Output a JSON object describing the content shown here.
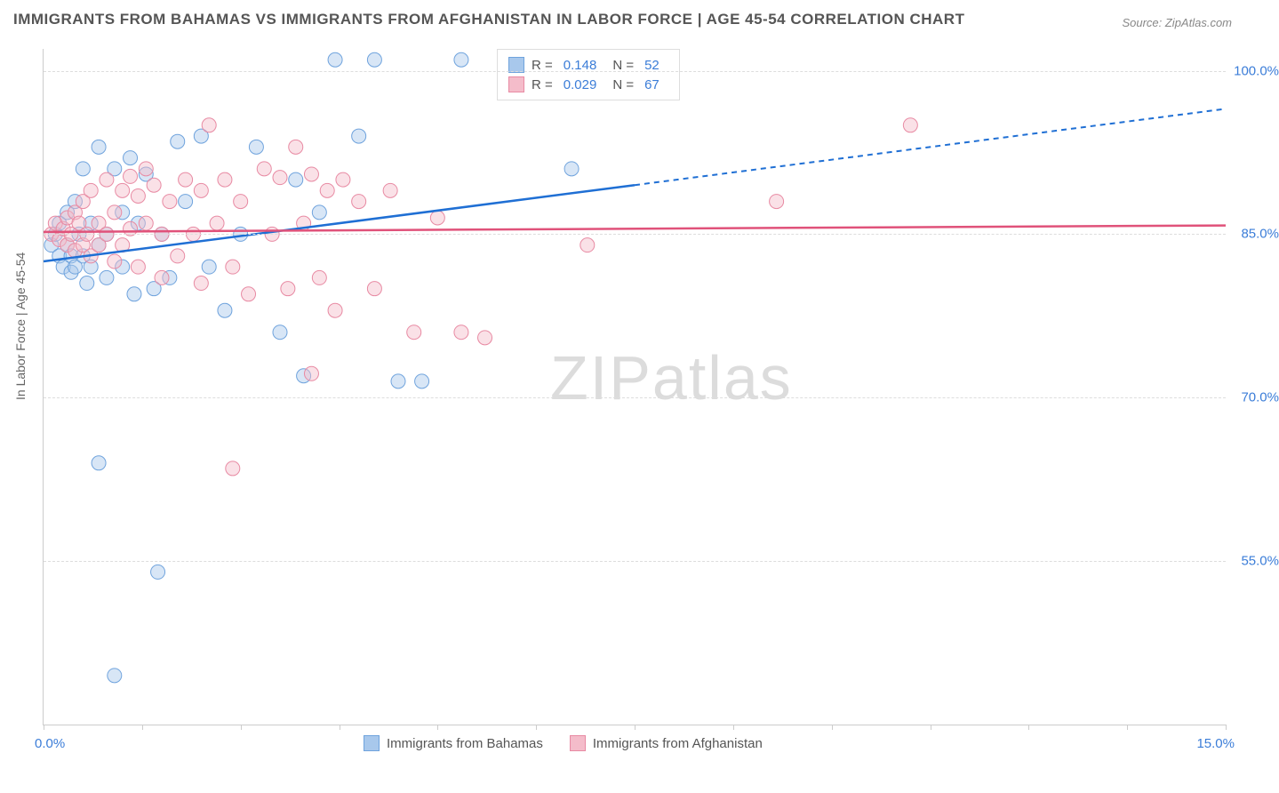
{
  "title": "IMMIGRANTS FROM BAHAMAS VS IMMIGRANTS FROM AFGHANISTAN IN LABOR FORCE | AGE 45-54 CORRELATION CHART",
  "source": "Source: ZipAtlas.com",
  "ylabel": "In Labor Force | Age 45-54",
  "watermark_a": "ZIP",
  "watermark_b": "atlas",
  "chart": {
    "type": "scatter",
    "xlim": [
      0,
      15
    ],
    "ylim": [
      40,
      102
    ],
    "yticks": [
      55,
      70,
      85,
      100
    ],
    "ytick_labels": [
      "55.0%",
      "70.0%",
      "85.0%",
      "100.0%"
    ],
    "xtick_positions": [
      0,
      1.25,
      2.5,
      3.75,
      5,
      6.25,
      7.5,
      8.75,
      10,
      11.25,
      12.5,
      13.75,
      15
    ],
    "x_left_label": "0.0%",
    "x_right_label": "15.0%",
    "background_color": "#ffffff",
    "grid_color": "#dddddd",
    "marker_radius": 8,
    "marker_opacity": 0.45,
    "series": [
      {
        "name": "Immigrants from Bahamas",
        "color_fill": "#a8c8ec",
        "color_stroke": "#6fa3dd",
        "line_color": "#1f6fd4",
        "r": "0.148",
        "n": "52",
        "regression": {
          "x1": 0,
          "y1": 82.5,
          "x2": 7.5,
          "y2": 89.5,
          "x2_dash": 15,
          "y2_dash": 96.5
        },
        "points": [
          [
            0.1,
            84
          ],
          [
            0.15,
            85
          ],
          [
            0.2,
            83
          ],
          [
            0.2,
            86
          ],
          [
            0.25,
            82
          ],
          [
            0.3,
            87
          ],
          [
            0.3,
            84
          ],
          [
            0.35,
            83
          ],
          [
            0.35,
            81.5
          ],
          [
            0.4,
            88
          ],
          [
            0.4,
            82
          ],
          [
            0.45,
            85
          ],
          [
            0.5,
            91
          ],
          [
            0.5,
            83
          ],
          [
            0.55,
            80.5
          ],
          [
            0.6,
            86
          ],
          [
            0.6,
            82
          ],
          [
            0.7,
            93
          ],
          [
            0.7,
            84
          ],
          [
            0.8,
            85
          ],
          [
            0.8,
            81
          ],
          [
            0.9,
            91
          ],
          [
            1.0,
            87
          ],
          [
            1.0,
            82
          ],
          [
            1.1,
            92
          ],
          [
            1.15,
            79.5
          ],
          [
            1.2,
            86
          ],
          [
            1.3,
            90.5
          ],
          [
            1.4,
            80
          ],
          [
            1.5,
            85
          ],
          [
            1.6,
            81
          ],
          [
            1.7,
            93.5
          ],
          [
            1.8,
            88
          ],
          [
            2.0,
            94
          ],
          [
            2.1,
            82
          ],
          [
            2.3,
            78
          ],
          [
            2.5,
            85
          ],
          [
            2.7,
            93
          ],
          [
            3.0,
            76
          ],
          [
            3.2,
            90
          ],
          [
            3.3,
            72
          ],
          [
            3.5,
            87
          ],
          [
            3.7,
            101
          ],
          [
            4.0,
            94
          ],
          [
            4.2,
            101
          ],
          [
            4.5,
            71.5
          ],
          [
            4.8,
            71.5
          ],
          [
            5.3,
            101
          ],
          [
            6.7,
            91
          ],
          [
            0.7,
            64
          ],
          [
            1.45,
            54
          ],
          [
            0.9,
            44.5
          ]
        ]
      },
      {
        "name": "Immigrants from Afghanistan",
        "color_fill": "#f4bcca",
        "color_stroke": "#e88aa3",
        "line_color": "#e0527a",
        "r": "0.029",
        "n": "67",
        "regression": {
          "x1": 0,
          "y1": 85.2,
          "x2": 15,
          "y2": 85.8
        },
        "points": [
          [
            0.1,
            85
          ],
          [
            0.15,
            86
          ],
          [
            0.2,
            84.5
          ],
          [
            0.25,
            85.5
          ],
          [
            0.3,
            86.5
          ],
          [
            0.3,
            84
          ],
          [
            0.35,
            85
          ],
          [
            0.4,
            87
          ],
          [
            0.4,
            83.5
          ],
          [
            0.45,
            86
          ],
          [
            0.5,
            84
          ],
          [
            0.5,
            88
          ],
          [
            0.55,
            85
          ],
          [
            0.6,
            89
          ],
          [
            0.6,
            83
          ],
          [
            0.7,
            86
          ],
          [
            0.7,
            84
          ],
          [
            0.8,
            90
          ],
          [
            0.8,
            85
          ],
          [
            0.9,
            87
          ],
          [
            0.9,
            82.5
          ],
          [
            1.0,
            89
          ],
          [
            1.0,
            84
          ],
          [
            1.1,
            90.3
          ],
          [
            1.1,
            85.5
          ],
          [
            1.2,
            88.5
          ],
          [
            1.2,
            82
          ],
          [
            1.3,
            91
          ],
          [
            1.3,
            86
          ],
          [
            1.4,
            89.5
          ],
          [
            1.5,
            85
          ],
          [
            1.5,
            81
          ],
          [
            1.6,
            88
          ],
          [
            1.7,
            83
          ],
          [
            1.8,
            90
          ],
          [
            1.9,
            85
          ],
          [
            2.0,
            89
          ],
          [
            2.0,
            80.5
          ],
          [
            2.1,
            95
          ],
          [
            2.2,
            86
          ],
          [
            2.3,
            90
          ],
          [
            2.4,
            82
          ],
          [
            2.5,
            88
          ],
          [
            2.6,
            79.5
          ],
          [
            2.8,
            91
          ],
          [
            2.9,
            85
          ],
          [
            3.0,
            90.2
          ],
          [
            3.1,
            80
          ],
          [
            3.2,
            93
          ],
          [
            3.3,
            86
          ],
          [
            3.4,
            90.5
          ],
          [
            3.5,
            81
          ],
          [
            3.6,
            89
          ],
          [
            3.7,
            78
          ],
          [
            3.8,
            90
          ],
          [
            4.0,
            88
          ],
          [
            4.2,
            80
          ],
          [
            4.4,
            89
          ],
          [
            4.7,
            76
          ],
          [
            5.0,
            86.5
          ],
          [
            5.3,
            76
          ],
          [
            5.6,
            75.5
          ],
          [
            6.9,
            84
          ],
          [
            9.3,
            88
          ],
          [
            11.0,
            95
          ],
          [
            2.4,
            63.5
          ],
          [
            3.4,
            72.2
          ]
        ]
      }
    ],
    "legend_top": {
      "r_label": "R =",
      "n_label": "N ="
    },
    "legend_bottom_labels": [
      "Immigrants from Bahamas",
      "Immigrants from Afghanistan"
    ]
  }
}
